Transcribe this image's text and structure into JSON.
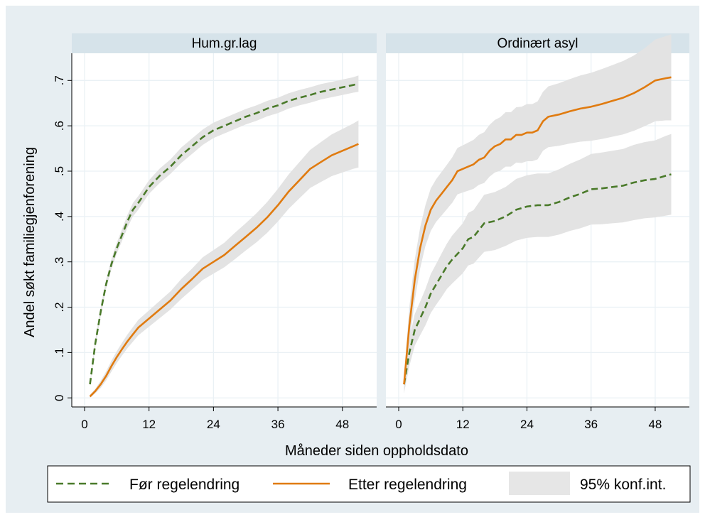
{
  "chart_data": {
    "type": "line",
    "ylabel": "Andel søkt familiegjenforening",
    "xlabel": "Måneder siden oppholdsdato",
    "xlim": [
      0,
      52
    ],
    "ylim": [
      -0.02,
      0.76
    ],
    "x_ticks": [
      0,
      12,
      24,
      36,
      48
    ],
    "x_tick_labels": [
      "0",
      "12",
      "24",
      "36",
      "48"
    ],
    "y_ticks": [
      0,
      0.1,
      0.2,
      0.3,
      0.4,
      0.5,
      0.6,
      0.7
    ],
    "y_tick_labels": [
      "0",
      ".1",
      ".2",
      ".3",
      ".4",
      ".5",
      ".6",
      ".7"
    ],
    "grid": true,
    "legend_position": "bottom",
    "legend": {
      "items": [
        {
          "label": "Før regelendring",
          "kind": "dashed-line",
          "color": "#4a7a2a"
        },
        {
          "label": "Etter regelendring",
          "kind": "solid-line",
          "color": "#e07b10"
        },
        {
          "label": "95% konf.int.",
          "kind": "area",
          "color": "#e6e6e6"
        }
      ]
    },
    "colors": {
      "background": "#e7eef2",
      "panel_header": "#d6e3ea",
      "plot": "#ffffff",
      "grid": "#eaf1f5",
      "ci_band": "#e3e3e3",
      "before": "#4a7a2a",
      "after": "#e07b10"
    },
    "panels": [
      {
        "title": "Hum.gr.lag",
        "series": [
          {
            "name": "Før regelendring",
            "x": [
              1,
              2,
              3,
              4,
              5,
              6,
              7,
              8,
              9,
              10,
              12,
              14,
              16,
              18,
              20,
              22,
              24,
              26,
              28,
              30,
              32,
              34,
              36,
              38,
              40,
              42,
              44,
              46,
              48,
              50,
              51
            ],
            "y": [
              0.03,
              0.12,
              0.19,
              0.25,
              0.295,
              0.33,
              0.36,
              0.39,
              0.415,
              0.43,
              0.465,
              0.49,
              0.51,
              0.535,
              0.555,
              0.575,
              0.59,
              0.6,
              0.61,
              0.62,
              0.628,
              0.638,
              0.645,
              0.655,
              0.662,
              0.668,
              0.675,
              0.68,
              0.685,
              0.69,
              0.693
            ],
            "ci_lower": [
              0.026,
              0.112,
              0.18,
              0.24,
              0.284,
              0.318,
              0.347,
              0.376,
              0.4,
              0.415,
              0.45,
              0.474,
              0.494,
              0.518,
              0.538,
              0.558,
              0.573,
              0.583,
              0.593,
              0.603,
              0.611,
              0.621,
              0.628,
              0.638,
              0.645,
              0.651,
              0.658,
              0.663,
              0.668,
              0.673,
              0.675
            ],
            "ci_upper": [
              0.034,
              0.128,
              0.2,
              0.26,
              0.306,
              0.342,
              0.373,
              0.404,
              0.43,
              0.445,
              0.48,
              0.506,
              0.526,
              0.552,
              0.572,
              0.592,
              0.607,
              0.617,
              0.627,
              0.637,
              0.645,
              0.655,
              0.662,
              0.672,
              0.679,
              0.685,
              0.692,
              0.697,
              0.702,
              0.707,
              0.711
            ]
          },
          {
            "name": "Etter regelendring",
            "x": [
              1,
              2,
              3,
              4,
              5,
              6,
              7,
              8,
              9,
              10,
              12,
              14,
              16,
              18,
              20,
              22,
              24,
              26,
              28,
              30,
              32,
              34,
              36,
              38,
              40,
              42,
              44,
              46,
              48,
              50,
              51
            ],
            "y": [
              0.003,
              0.015,
              0.03,
              0.048,
              0.07,
              0.09,
              0.108,
              0.125,
              0.14,
              0.155,
              0.175,
              0.195,
              0.215,
              0.24,
              0.262,
              0.285,
              0.3,
              0.315,
              0.335,
              0.355,
              0.375,
              0.398,
              0.425,
              0.455,
              0.48,
              0.505,
              0.52,
              0.535,
              0.545,
              0.555,
              0.56
            ],
            "ci_lower": [
              0.0,
              0.01,
              0.022,
              0.038,
              0.058,
              0.077,
              0.094,
              0.11,
              0.124,
              0.138,
              0.157,
              0.176,
              0.195,
              0.218,
              0.239,
              0.26,
              0.274,
              0.288,
              0.306,
              0.325,
              0.343,
              0.364,
              0.389,
              0.417,
              0.44,
              0.463,
              0.476,
              0.489,
              0.497,
              0.505,
              0.508
            ],
            "ci_upper": [
              0.007,
              0.02,
              0.038,
              0.058,
              0.082,
              0.103,
              0.122,
              0.14,
              0.156,
              0.172,
              0.193,
              0.214,
              0.235,
              0.262,
              0.285,
              0.31,
              0.326,
              0.342,
              0.364,
              0.385,
              0.407,
              0.432,
              0.461,
              0.493,
              0.52,
              0.547,
              0.564,
              0.581,
              0.593,
              0.605,
              0.612
            ]
          }
        ]
      },
      {
        "title": "Ordinært asyl",
        "series": [
          {
            "name": "Før regelendring",
            "x": [
              1,
              2,
              3,
              4,
              5,
              6,
              7,
              8,
              9,
              10,
              12,
              13,
              14,
              15,
              16,
              18,
              20,
              22,
              24,
              26,
              28,
              30,
              32,
              34,
              36,
              38,
              40,
              42,
              44,
              46,
              48,
              50,
              51
            ],
            "y": [
              0.03,
              0.1,
              0.15,
              0.175,
              0.2,
              0.23,
              0.25,
              0.27,
              0.29,
              0.305,
              0.33,
              0.35,
              0.355,
              0.37,
              0.385,
              0.39,
              0.4,
              0.415,
              0.422,
              0.425,
              0.425,
              0.432,
              0.442,
              0.45,
              0.46,
              0.462,
              0.465,
              0.468,
              0.475,
              0.48,
              0.483,
              0.49,
              0.493
            ],
            "ci_lower": [
              0.01,
              0.07,
              0.115,
              0.138,
              0.16,
              0.187,
              0.205,
              0.222,
              0.24,
              0.252,
              0.275,
              0.292,
              0.296,
              0.309,
              0.322,
              0.326,
              0.335,
              0.347,
              0.353,
              0.355,
              0.355,
              0.36,
              0.368,
              0.374,
              0.382,
              0.383,
              0.385,
              0.387,
              0.392,
              0.396,
              0.398,
              0.402,
              0.404
            ],
            "ci_upper": [
              0.05,
              0.13,
              0.185,
              0.212,
              0.24,
              0.273,
              0.295,
              0.318,
              0.34,
              0.358,
              0.385,
              0.408,
              0.414,
              0.431,
              0.448,
              0.454,
              0.465,
              0.483,
              0.491,
              0.495,
              0.495,
              0.504,
              0.516,
              0.526,
              0.538,
              0.541,
              0.545,
              0.549,
              0.558,
              0.564,
              0.568,
              0.578,
              0.582
            ]
          },
          {
            "name": "Etter regelendring",
            "x": [
              1,
              2,
              3,
              4,
              5,
              6,
              7,
              8,
              9,
              10,
              11,
              12,
              13,
              14,
              15,
              16,
              17,
              18,
              19,
              20,
              21,
              22,
              23,
              24,
              25,
              26,
              27,
              28,
              30,
              32,
              34,
              36,
              38,
              40,
              42,
              44,
              46,
              48,
              50,
              51
            ],
            "y": [
              0.03,
              0.16,
              0.26,
              0.33,
              0.38,
              0.415,
              0.435,
              0.45,
              0.465,
              0.48,
              0.5,
              0.505,
              0.51,
              0.515,
              0.525,
              0.53,
              0.545,
              0.555,
              0.56,
              0.57,
              0.57,
              0.58,
              0.58,
              0.585,
              0.585,
              0.59,
              0.61,
              0.62,
              0.625,
              0.632,
              0.638,
              0.642,
              0.648,
              0.655,
              0.662,
              0.672,
              0.685,
              0.7,
              0.705,
              0.707
            ],
            "ci_lower": [
              0.01,
              0.12,
              0.215,
              0.285,
              0.335,
              0.368,
              0.388,
              0.402,
              0.416,
              0.43,
              0.449,
              0.453,
              0.457,
              0.461,
              0.47,
              0.474,
              0.488,
              0.497,
              0.501,
              0.51,
              0.51,
              0.519,
              0.518,
              0.522,
              0.522,
              0.526,
              0.545,
              0.553,
              0.556,
              0.561,
              0.565,
              0.567,
              0.571,
              0.576,
              0.581,
              0.589,
              0.599,
              0.61,
              0.612,
              0.612
            ],
            "ci_upper": [
              0.05,
              0.2,
              0.305,
              0.375,
              0.425,
              0.462,
              0.482,
              0.498,
              0.514,
              0.53,
              0.551,
              0.557,
              0.563,
              0.569,
              0.58,
              0.586,
              0.602,
              0.613,
              0.619,
              0.63,
              0.63,
              0.641,
              0.642,
              0.648,
              0.648,
              0.654,
              0.675,
              0.687,
              0.694,
              0.703,
              0.711,
              0.717,
              0.725,
              0.734,
              0.743,
              0.755,
              0.771,
              0.79,
              0.798,
              0.802
            ]
          }
        ]
      }
    ]
  }
}
